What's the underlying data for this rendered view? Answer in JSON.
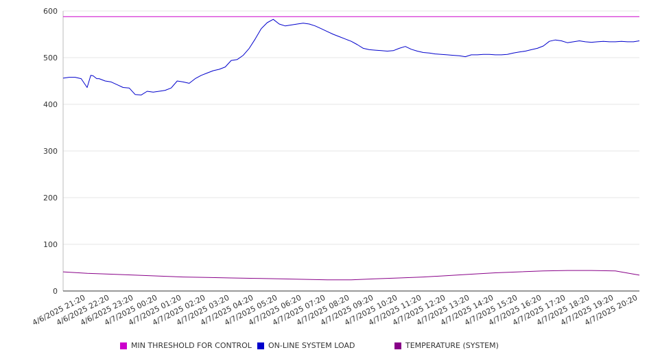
{
  "chart_data": {
    "type": "line",
    "title": "",
    "xlabel": "",
    "ylabel": "",
    "ylim": [
      0,
      600
    ],
    "yticks": [
      0,
      100,
      200,
      300,
      400,
      500,
      600
    ],
    "grid": "horizontal",
    "legend_position": "bottom",
    "x_range_hours": [
      0,
      24
    ],
    "categories": [
      "4/6/2025 21:20",
      "4/6/2025 22:20",
      "4/6/2025 23:20",
      "4/7/2025 00:20",
      "4/7/2025 01:20",
      "4/7/2025 02:20",
      "4/7/2025 03:20",
      "4/7/2025 04:20",
      "4/7/2025 05:20",
      "4/7/2025 06:20",
      "4/7/2025 07:20",
      "4/7/2025 08:20",
      "4/7/2025 09:20",
      "4/7/2025 10:20",
      "4/7/2025 11:20",
      "4/7/2025 12:20",
      "4/7/2025 13:20",
      "4/7/2025 14:20",
      "4/7/2025 15:20",
      "4/7/2025 16:20",
      "4/7/2025 17:20",
      "4/7/2025 18:20",
      "4/7/2025 19:20",
      "4/7/2025 20:20"
    ],
    "series": [
      {
        "name": "MIN THRESHOLD FOR CONTROL",
        "color": "#cc00cc",
        "x": [
          0,
          24
        ],
        "values": [
          588,
          588
        ]
      },
      {
        "name": "ON-LINE SYSTEM LOAD",
        "color": "#0000cc",
        "x": [
          0,
          0.25,
          0.5,
          0.75,
          1.0,
          1.15,
          1.25,
          1.4,
          1.5,
          1.75,
          2.0,
          2.25,
          2.5,
          2.75,
          3.0,
          3.25,
          3.5,
          3.75,
          4.0,
          4.25,
          4.5,
          4.75,
          5.0,
          5.25,
          5.5,
          5.75,
          6.0,
          6.25,
          6.5,
          6.75,
          7.0,
          7.25,
          7.5,
          7.75,
          8.0,
          8.25,
          8.5,
          8.75,
          9.0,
          9.25,
          9.5,
          9.75,
          10.0,
          10.25,
          10.5,
          10.75,
          11.0,
          11.25,
          11.5,
          11.75,
          12.0,
          12.25,
          12.5,
          12.75,
          13.0,
          13.25,
          13.5,
          13.75,
          14.0,
          14.25,
          14.5,
          14.75,
          15.0,
          15.25,
          15.5,
          15.75,
          16.0,
          16.25,
          16.5,
          16.75,
          17.0,
          17.25,
          17.5,
          17.75,
          18.0,
          18.25,
          18.5,
          18.75,
          19.0,
          19.25,
          19.5,
          19.75,
          20.0,
          20.25,
          20.5,
          20.75,
          21.0,
          21.25,
          21.5,
          21.75,
          22.0,
          22.25,
          22.5,
          22.75,
          23.0,
          23.25,
          23.5,
          23.75,
          24.0
        ],
        "values": [
          456,
          458,
          458,
          455,
          436,
          462,
          461,
          455,
          455,
          450,
          448,
          442,
          436,
          435,
          421,
          420,
          428,
          426,
          428,
          430,
          435,
          450,
          448,
          445,
          455,
          462,
          467,
          472,
          475,
          480,
          494,
          496,
          505,
          520,
          540,
          562,
          575,
          582,
          572,
          568,
          570,
          572,
          574,
          572,
          568,
          562,
          556,
          550,
          545,
          540,
          535,
          528,
          520,
          517,
          516,
          515,
          514,
          515,
          520,
          524,
          518,
          514,
          511,
          510,
          508,
          507,
          506,
          505,
          504,
          502,
          506,
          506,
          507,
          507,
          506,
          506,
          507,
          510,
          512,
          514,
          517,
          520,
          525,
          535,
          538,
          536,
          532,
          534,
          536,
          534,
          533,
          534,
          535,
          534,
          534,
          535,
          534,
          534,
          536
        ]
      },
      {
        "name": "TEMPERATURE (SYSTEM)",
        "color": "#880088",
        "x": [
          0,
          1,
          2,
          3,
          4,
          5,
          6,
          7,
          8,
          9,
          10,
          11,
          12,
          13,
          14,
          15,
          16,
          17,
          18,
          19,
          20,
          21,
          22,
          23,
          24
        ],
        "values": [
          41,
          38,
          36,
          34,
          32,
          30,
          29,
          28,
          27,
          26,
          25,
          24,
          24,
          26,
          28,
          30,
          33,
          36,
          39,
          41,
          43,
          44,
          44,
          43,
          34
        ]
      }
    ]
  }
}
